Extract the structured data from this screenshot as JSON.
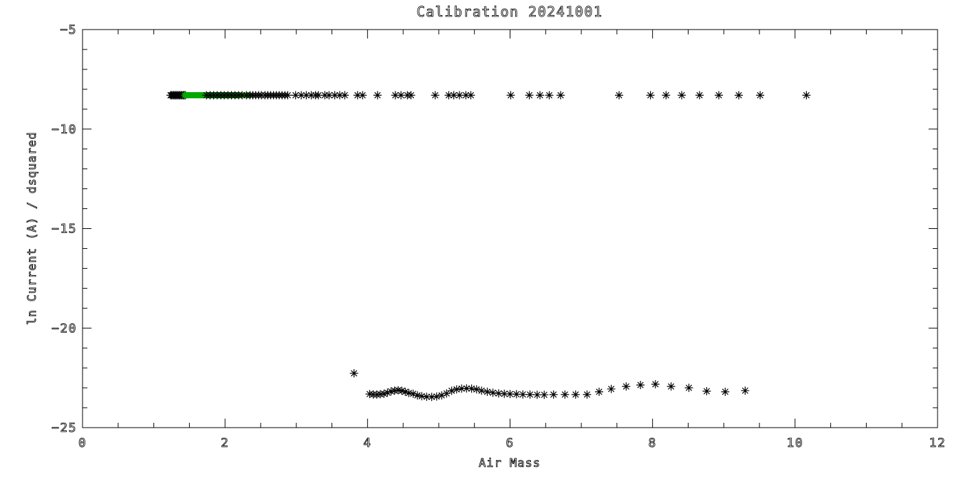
{
  "chart_data": {
    "type": "scatter",
    "title": "Calibration 20241001",
    "xlabel": "Air Mass",
    "ylabel": "ln Current (A) / dsquared",
    "xlim": [
      0,
      12
    ],
    "ylim": [
      -25,
      -5
    ],
    "x_major_ticks": [
      0,
      2,
      4,
      6,
      8,
      10,
      12
    ],
    "x_minor_step": 0.5,
    "y_major_ticks": [
      -5,
      -10,
      -15,
      -20,
      -25
    ],
    "y_minor_step": 1,
    "grid": false,
    "legend": false,
    "marker": "asterisk",
    "colors": {
      "black": "#000000",
      "green": "#00a800"
    },
    "series": [
      {
        "name": "upper-band-black-dense-blob",
        "color": "#000000",
        "marker_radius": 6,
        "y": -8.3,
        "x": [
          1.235,
          1.25,
          1.265,
          1.28,
          1.295,
          1.31,
          1.325,
          1.34,
          1.355,
          1.37,
          1.385,
          1.4,
          1.415,
          1.43,
          1.445
        ]
      },
      {
        "name": "upper-band-green",
        "color": "#00a800",
        "marker_radius": 4.5,
        "y": -8.3,
        "x": [
          1.43,
          1.4425,
          1.455,
          1.4675,
          1.48,
          1.4925,
          1.505,
          1.5175,
          1.53,
          1.5425,
          1.555,
          1.5675,
          1.58,
          1.5925,
          1.605,
          1.6175,
          1.63,
          1.6425,
          1.655,
          1.6675,
          1.68,
          1.6925,
          1.705,
          1.7175,
          1.73,
          1.7425,
          1.755,
          1.7675,
          1.78,
          1.7925,
          1.805,
          1.8175,
          1.83,
          1.8425,
          1.855,
          1.8675,
          1.88,
          1.8925,
          1.905,
          1.9175,
          1.93,
          1.9425,
          1.955,
          1.9675,
          1.98,
          1.9925,
          2.005,
          2.0175,
          2.03,
          2.0425,
          2.055,
          2.0675,
          2.08,
          2.0925,
          2.105,
          2.1175,
          2.13,
          2.1425,
          2.155,
          2.1675,
          2.2,
          2.235,
          2.27,
          2.31,
          2.35
        ]
      },
      {
        "name": "upper-band-black",
        "color": "#000000",
        "marker_radius": 6,
        "y": -8.3,
        "x": [
          1.74,
          1.79,
          1.84,
          1.89,
          1.94,
          1.99,
          2.04,
          2.09,
          2.14,
          2.19,
          2.24,
          2.3,
          2.35,
          2.39,
          2.43,
          2.47,
          2.51,
          2.56,
          2.6,
          2.64,
          2.68,
          2.72,
          2.76,
          2.8,
          2.84,
          2.88,
          2.99,
          3.07,
          3.14,
          3.21,
          3.27,
          3.31,
          3.4,
          3.46,
          3.54,
          3.61,
          3.68,
          3.86,
          3.93,
          4.14,
          4.39,
          4.47,
          4.56,
          4.61,
          4.95,
          5.14,
          5.21,
          5.29,
          5.38,
          5.45,
          6.01,
          6.27,
          6.42,
          6.55,
          6.71,
          7.53,
          7.97,
          8.19,
          8.41,
          8.66,
          8.93,
          9.21,
          9.51,
          10.16
        ]
      },
      {
        "name": "lower-band-black",
        "color": "#000000",
        "marker_radius": 6,
        "points": [
          [
            3.81,
            -22.27
          ],
          [
            4.03,
            -23.31
          ],
          [
            4.08,
            -23.33
          ],
          [
            4.13,
            -23.34
          ],
          [
            4.18,
            -23.32
          ],
          [
            4.23,
            -23.3
          ],
          [
            4.28,
            -23.25
          ],
          [
            4.33,
            -23.18
          ],
          [
            4.38,
            -23.14
          ],
          [
            4.43,
            -23.12
          ],
          [
            4.48,
            -23.15
          ],
          [
            4.53,
            -23.2
          ],
          [
            4.58,
            -23.26
          ],
          [
            4.64,
            -23.3
          ],
          [
            4.7,
            -23.38
          ],
          [
            4.76,
            -23.42
          ],
          [
            4.83,
            -23.45
          ],
          [
            4.9,
            -23.46
          ],
          [
            4.97,
            -23.44
          ],
          [
            5.04,
            -23.38
          ],
          [
            5.11,
            -23.28
          ],
          [
            5.18,
            -23.15
          ],
          [
            5.25,
            -23.08
          ],
          [
            5.32,
            -23.04
          ],
          [
            5.39,
            -23.03
          ],
          [
            5.46,
            -23.04
          ],
          [
            5.53,
            -23.08
          ],
          [
            5.6,
            -23.14
          ],
          [
            5.68,
            -23.2
          ],
          [
            5.76,
            -23.25
          ],
          [
            5.84,
            -23.28
          ],
          [
            5.92,
            -23.3
          ],
          [
            6.0,
            -23.31
          ],
          [
            6.09,
            -23.32
          ],
          [
            6.18,
            -23.33
          ],
          [
            6.28,
            -23.34
          ],
          [
            6.38,
            -23.35
          ],
          [
            6.48,
            -23.35
          ],
          [
            6.61,
            -23.34
          ],
          [
            6.77,
            -23.34
          ],
          [
            6.92,
            -23.34
          ],
          [
            7.08,
            -23.34
          ],
          [
            7.25,
            -23.2
          ],
          [
            7.42,
            -23.06
          ],
          [
            7.63,
            -22.93
          ],
          [
            7.83,
            -22.86
          ],
          [
            8.04,
            -22.82
          ],
          [
            8.26,
            -22.93
          ],
          [
            8.51,
            -23.0
          ],
          [
            8.76,
            -23.17
          ],
          [
            9.02,
            -23.2
          ],
          [
            9.3,
            -23.14
          ]
        ]
      }
    ]
  }
}
